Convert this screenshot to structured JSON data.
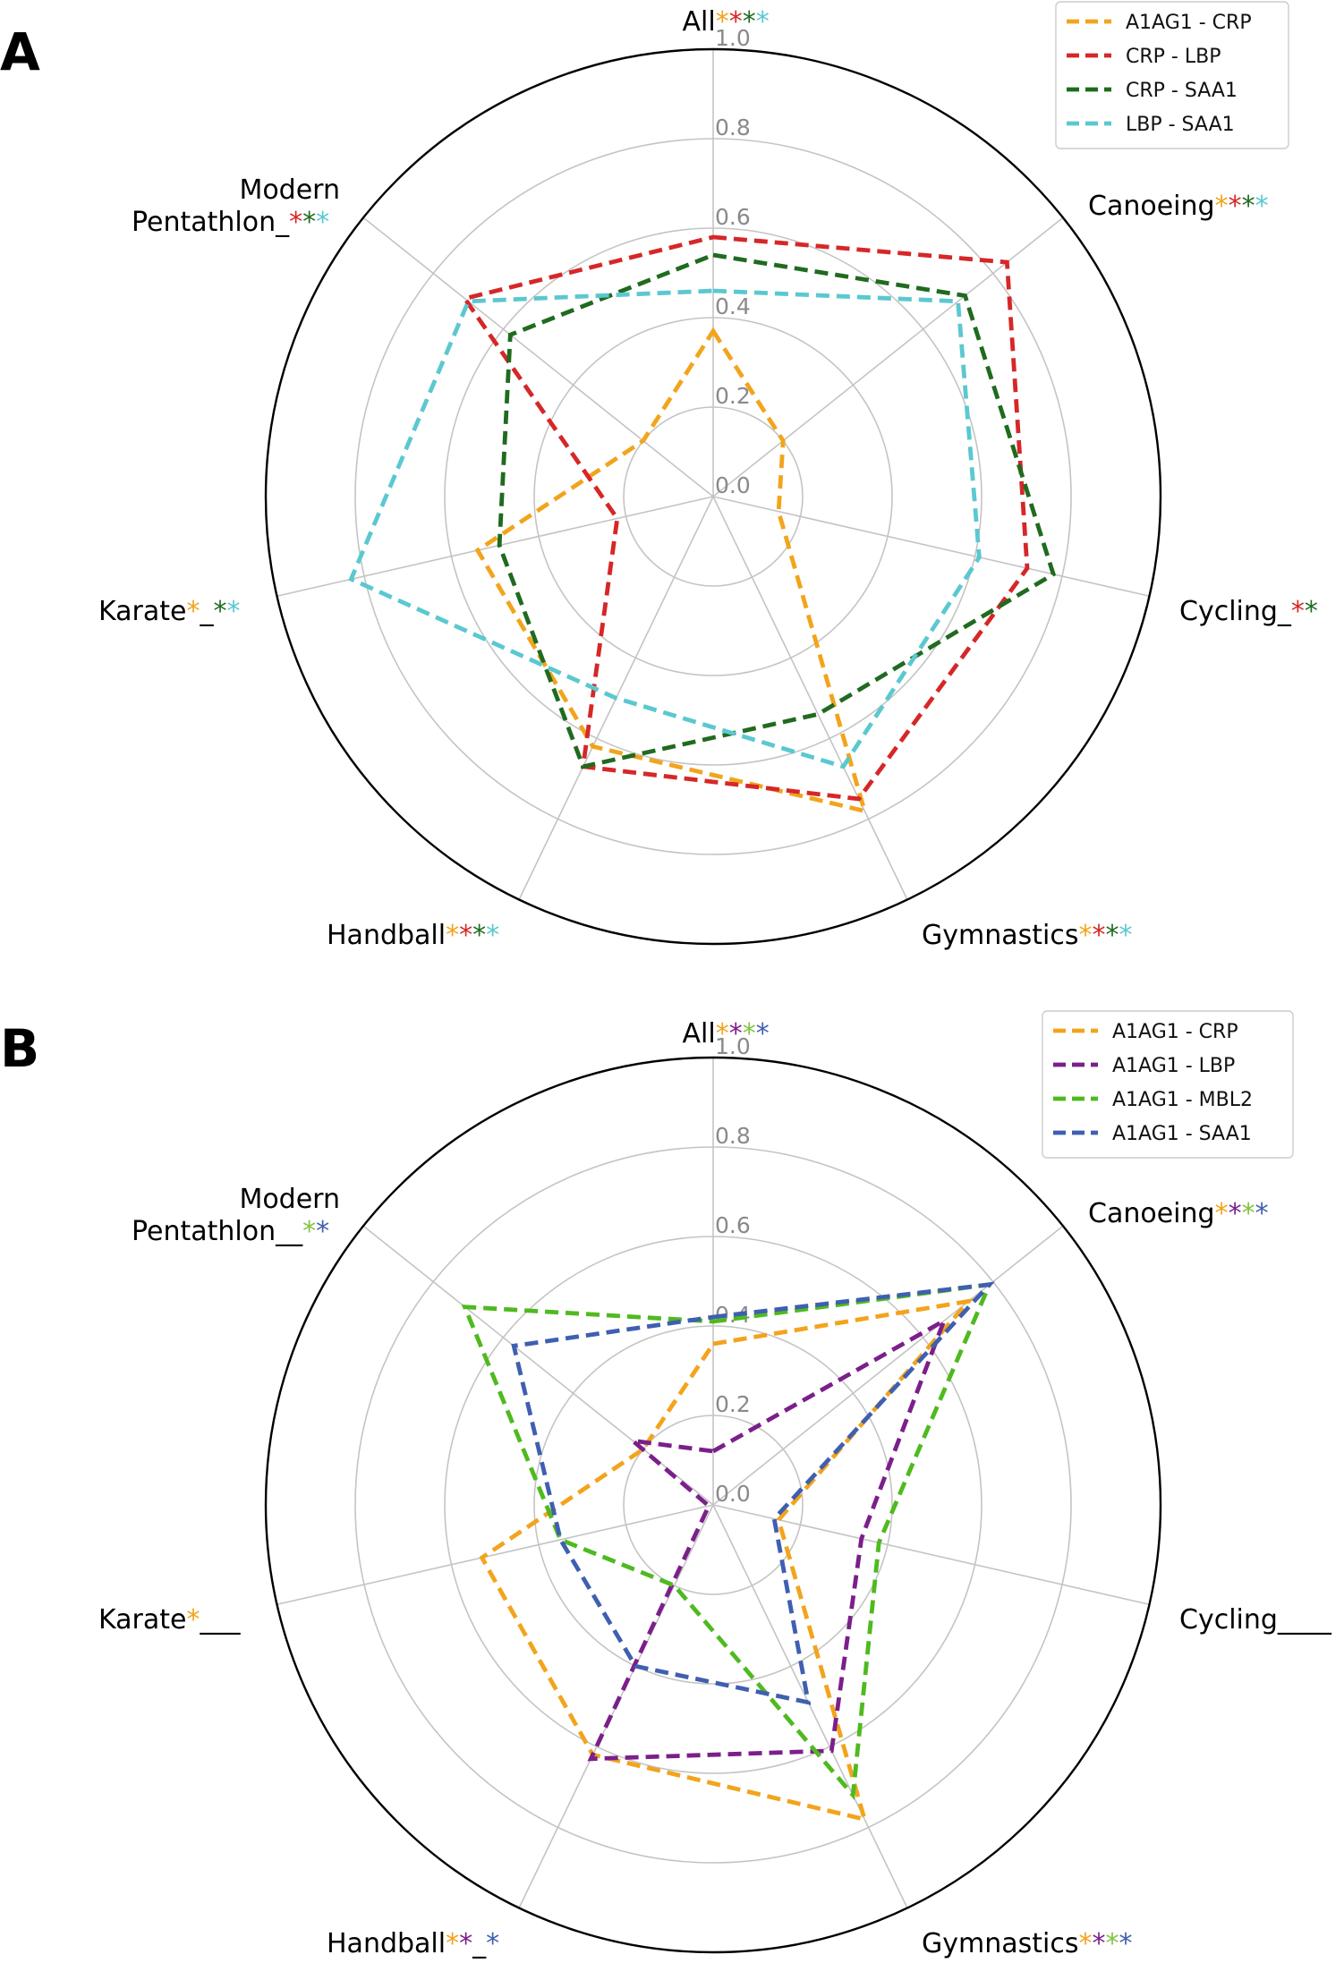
{
  "chart_data": [
    {
      "type": "radar",
      "panel": "A",
      "categories": [
        "All",
        "Canoeing",
        "Cycling_",
        "Gymnastics",
        "Handball",
        "Karate",
        "Modern\nPentathlon_"
      ],
      "stars": [
        [
          "#f2a41c",
          "#d62728",
          "#1f6b1f",
          "#5bc8d0"
        ],
        [
          "#f2a41c",
          "#d62728",
          "#1f6b1f",
          "#5bc8d0"
        ],
        [
          "#d62728",
          "#1f6b1f"
        ],
        [
          "#f2a41c",
          "#d62728",
          "#1f6b1f",
          "#5bc8d0"
        ],
        [
          "#f2a41c",
          "#d62728",
          "#1f6b1f",
          "#5bc8d0"
        ],
        [
          "#f2a41c",
          "_",
          "#1f6b1f",
          "#5bc8d0"
        ],
        [
          "#d62728",
          "#1f6b1f",
          "#5bc8d0"
        ]
      ],
      "rticks": [
        "0.0",
        "0.2",
        "0.4",
        "0.6",
        "0.8",
        "1.0"
      ],
      "rlim": [
        0,
        1
      ],
      "series": [
        {
          "name": "A1AG1 - CRP",
          "color": "#f2a41c",
          "values": [
            0.37,
            0.2,
            0.15,
            0.78,
            0.62,
            0.54,
            0.2
          ]
        },
        {
          "name": "CRP - LBP",
          "color": "#d62728",
          "values": [
            0.58,
            0.84,
            0.72,
            0.75,
            0.67,
            0.22,
            0.71
          ]
        },
        {
          "name": "CRP - SAA1",
          "color": "#1f6b1f",
          "values": [
            0.54,
            0.72,
            0.78,
            0.54,
            0.67,
            0.49,
            0.58
          ]
        },
        {
          "name": "LBP - SAA1",
          "color": "#5bc8d0",
          "values": [
            0.46,
            0.7,
            0.61,
            0.67,
            0.5,
            0.83,
            0.7
          ]
        }
      ],
      "legend_position": "top-right"
    },
    {
      "type": "radar",
      "panel": "B",
      "categories": [
        "All",
        "Canoeing",
        "Cycling____",
        "Gymnastics",
        "Handball",
        "Karate",
        "Modern\nPentathlon__"
      ],
      "stars": [
        [
          "#f2a41c",
          "#7b1f8a",
          "#82c341",
          "#3f5fb0"
        ],
        [
          "#f2a41c",
          "#7b1f8a",
          "#82c341",
          "#3f5fb0"
        ],
        [],
        [
          "#f2a41c",
          "#7b1f8a",
          "#82c341",
          "#3f5fb0"
        ],
        [
          "#f2a41c",
          "#7b1f8a",
          "_",
          "#3f5fb0"
        ],
        [
          "#f2a41c",
          "___"
        ],
        [
          "#82c341",
          "#3f5fb0"
        ]
      ],
      "rticks": [
        "0.0",
        "0.2",
        "0.4",
        "0.6",
        "0.8",
        "1.0"
      ],
      "rlim": [
        0,
        1
      ],
      "series": [
        {
          "name": "A1AG1 - CRP",
          "color": "#f2a41c",
          "values": [
            0.36,
            0.73,
            0.15,
            0.78,
            0.62,
            0.53,
            0.2
          ]
        },
        {
          "name": "A1AG1 - LBP",
          "color": "#7b1f8a",
          "values": [
            0.12,
            0.66,
            0.34,
            0.61,
            0.63,
            0.01,
            0.23
          ]
        },
        {
          "name": "A1AG1 - MBL2",
          "color": "#4fba1f",
          "values": [
            0.41,
            0.79,
            0.38,
            0.72,
            0.2,
            0.35,
            0.71
          ]
        },
        {
          "name": "A1AG1 - SAA1",
          "color": "#3f5fb0",
          "values": [
            0.42,
            0.79,
            0.14,
            0.49,
            0.4,
            0.35,
            0.57
          ]
        }
      ],
      "legend_position": "top-right"
    }
  ]
}
